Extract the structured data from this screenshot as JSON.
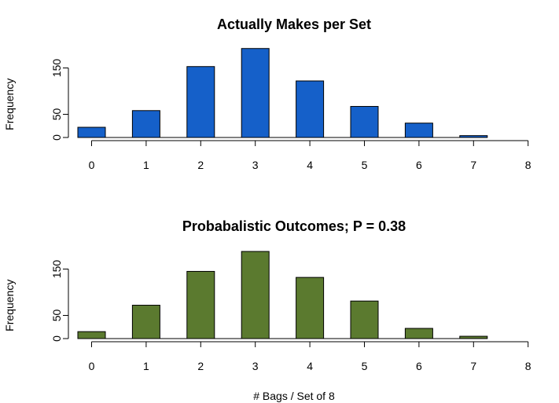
{
  "figure_xlabel": "# Bags / Set of 8",
  "chart_data": [
    {
      "type": "bar",
      "title": "Actually Makes per Set",
      "xlabel": "",
      "ylabel": "Frequency",
      "color": "#1560c9",
      "x": [
        0,
        1,
        2,
        3,
        4,
        5,
        6,
        7
      ],
      "values": [
        22,
        58,
        153,
        192,
        122,
        67,
        31,
        4
      ],
      "xlim": [
        0,
        8
      ],
      "xticks": [
        0,
        1,
        2,
        3,
        4,
        5,
        6,
        7,
        8
      ],
      "ylim": [
        0,
        200
      ],
      "yticks": [
        0,
        50,
        150
      ]
    },
    {
      "type": "bar",
      "title": "Probabalistic Outcomes; P = 0.38",
      "xlabel": "",
      "ylabel": "Frequency",
      "color": "#5b7a2f",
      "x": [
        0,
        1,
        2,
        3,
        4,
        5,
        6,
        7
      ],
      "values": [
        15,
        72,
        145,
        188,
        132,
        81,
        22,
        5
      ],
      "xlim": [
        0,
        8
      ],
      "xticks": [
        0,
        1,
        2,
        3,
        4,
        5,
        6,
        7,
        8
      ],
      "ylim": [
        0,
        200
      ],
      "yticks": [
        0,
        50,
        150
      ]
    }
  ]
}
